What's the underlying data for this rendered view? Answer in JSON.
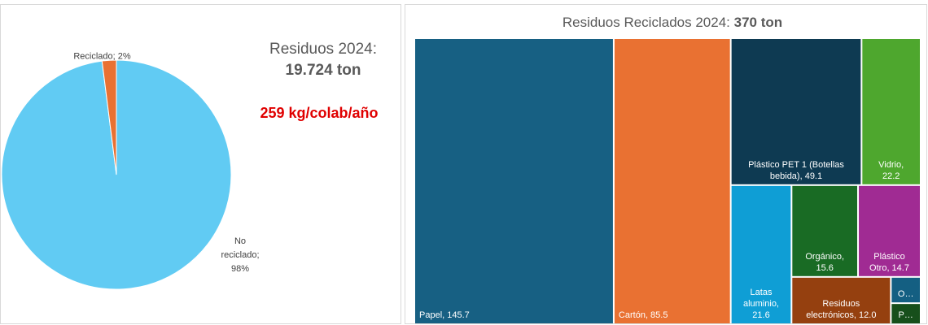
{
  "chart_data": [
    {
      "type": "pie",
      "title": "Residuos 2024:",
      "subtitle": "19.724 ton",
      "annotations": [
        "259 kg/colab/año"
      ],
      "categories": [
        "No reciclado",
        "Reciclado"
      ],
      "values": [
        98,
        2
      ],
      "value_labels": [
        "No reciclado; 98%",
        "Reciclado; 2%"
      ],
      "colors": [
        "#61cbf3",
        "#e97132"
      ],
      "annotation_color": "#e00000"
    },
    {
      "type": "treemap",
      "title": "Residuos Reciclados 2024:",
      "subtitle": "370 ton",
      "values": [
        145.7,
        85.5,
        49.1,
        22.2,
        21.6,
        15.6,
        14.7,
        12.0,
        2.0,
        1.6
      ],
      "value_labels": [
        "Papel, 145.7",
        "Cartón, 85.5",
        "Plástico PET 1 (Botellas bebida), 49.1",
        "Vidrio, 22.2",
        "Latas aluminio, 21.6",
        "Orgánico, 15.6",
        "Plástico Otro, 14.7",
        "Residuos electrónicos, 12.0",
        "O…",
        "P…"
      ],
      "colors": [
        "#176083",
        "#e97132",
        "#0e3a52",
        "#4ea72e",
        "#0f9ed5",
        "#196b24",
        "#a02b93",
        "#95400f",
        "#145f82",
        "#174f1b"
      ]
    }
  ]
}
